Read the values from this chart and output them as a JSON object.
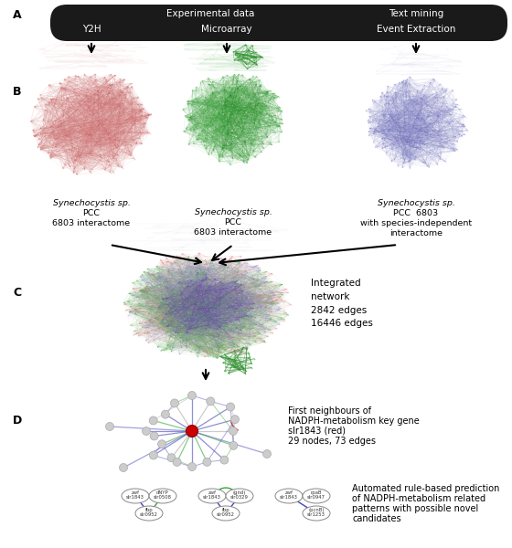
{
  "title_bar_text_top": "Experimental data",
  "title_bar_text_right": "Text mining",
  "title_bar_sub_left": "Y2H",
  "title_bar_sub_mid": "Microarray",
  "title_bar_sub_right": "Event Extraction",
  "label_A": "A",
  "label_B": "B",
  "label_C": "C",
  "label_D": "D",
  "integrated_text": "Integrated\nnetwork\n2842 edges\n16446 edges",
  "D_text1": "First neighbours of",
  "D_text2": "NADPH-metabolism key gene",
  "D_text3": "slr1843 (red)",
  "D_text4": "29 nodes, 73 edges",
  "D_text5": "Automated rule-based prediction",
  "D_text6": "of NADPH-metabolism related",
  "D_text7": "patterns with possible novel",
  "D_text8": "candidates",
  "bg_color": "#ffffff",
  "bar_color": "#1a1a1a",
  "bar_text_color": "#ffffff",
  "network1_edge_color": "#d88080",
  "network1_node_color": "#e8a0a0",
  "network2_edge_color": "#44aa44",
  "network2_node_color": "#88cc88",
  "network3_edge_color": "#8888cc",
  "network3_node_color": "#aaaadd",
  "node_color": "#cccccc",
  "node_edge_color": "#aaaaaa",
  "center_node_color": "#cc0000",
  "edge_red": "#cc3333",
  "edge_green": "#33aa33",
  "edge_blue": "#4444bb",
  "edge_gray": "#aaaaaa",
  "edge_orange": "#cc8833"
}
